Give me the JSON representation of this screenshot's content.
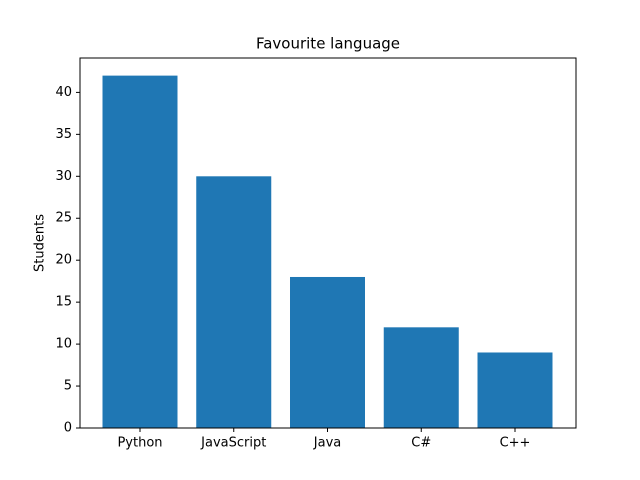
{
  "chart_data": {
    "type": "bar",
    "title": "Favourite language",
    "ylabel": "Students",
    "categories": [
      "Python",
      "JavaScript",
      "Java",
      "C#",
      "C++"
    ],
    "values": [
      42,
      30,
      18,
      12,
      9
    ],
    "color": "#1f77b4",
    "ylim": [
      0,
      44.1
    ],
    "yticks": [
      0,
      5,
      10,
      15,
      20,
      25,
      30,
      35,
      40
    ],
    "grid": false
  }
}
